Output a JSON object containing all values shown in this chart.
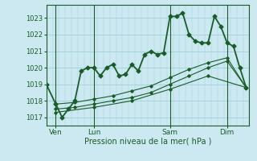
{
  "title": "Pression niveau de la mer( hPa )",
  "bg_color": "#cce8f0",
  "grid_color": "#a0d0dc",
  "line_color": "#1a5c28",
  "ylim": [
    1016.5,
    1023.8
  ],
  "yticks": [
    1017,
    1018,
    1019,
    1020,
    1021,
    1022,
    1023
  ],
  "xlim": [
    0,
    64
  ],
  "day_positions": [
    3,
    15,
    39,
    57
  ],
  "day_labels": [
    "Ven",
    "Lun",
    "Sam",
    "Dim"
  ],
  "vline_positions": [
    3,
    15,
    39,
    57
  ],
  "series": [
    {
      "x": [
        0,
        3,
        5,
        7,
        9,
        11,
        13,
        15,
        17,
        19,
        21,
        23,
        25,
        27,
        29,
        31,
        33,
        35,
        37,
        39,
        41,
        43,
        45,
        47,
        49,
        51,
        53,
        55,
        57,
        59,
        61,
        63
      ],
      "y": [
        1019.0,
        1017.8,
        1017.0,
        1017.5,
        1018.0,
        1019.8,
        1020.0,
        1020.0,
        1019.5,
        1020.0,
        1020.2,
        1019.5,
        1019.6,
        1020.2,
        1019.8,
        1020.8,
        1021.0,
        1020.8,
        1020.9,
        1023.1,
        1023.1,
        1023.3,
        1022.0,
        1021.6,
        1021.5,
        1021.5,
        1023.1,
        1022.5,
        1021.5,
        1021.3,
        1020.0,
        1018.8
      ],
      "lw": 1.3,
      "ms": 2.5
    },
    {
      "x": [
        3,
        9,
        15,
        21,
        27,
        33,
        39,
        45,
        51,
        57,
        63
      ],
      "y": [
        1017.8,
        1017.9,
        1018.1,
        1018.3,
        1018.6,
        1018.9,
        1019.4,
        1019.9,
        1020.3,
        1020.6,
        1018.8
      ],
      "lw": 0.8,
      "ms": 1.8
    },
    {
      "x": [
        3,
        9,
        15,
        21,
        27,
        33,
        39,
        45,
        51,
        57,
        63
      ],
      "y": [
        1017.5,
        1017.6,
        1017.8,
        1018.0,
        1018.2,
        1018.5,
        1019.0,
        1019.5,
        1020.0,
        1020.4,
        1018.8
      ],
      "lw": 0.8,
      "ms": 1.8
    },
    {
      "x": [
        3,
        15,
        27,
        39,
        51,
        63
      ],
      "y": [
        1017.3,
        1017.6,
        1018.0,
        1018.7,
        1019.5,
        1018.8
      ],
      "lw": 0.8,
      "ms": 1.8
    }
  ]
}
